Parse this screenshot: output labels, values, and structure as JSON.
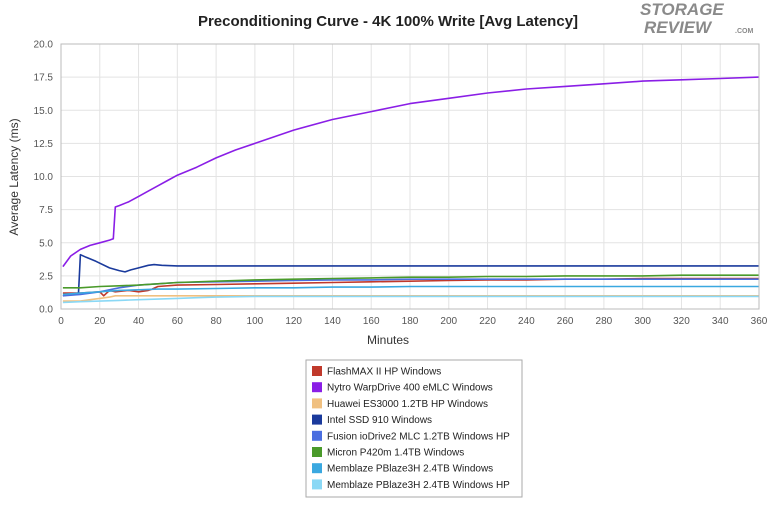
{
  "logo": {
    "line1": "STORAGE",
    "line2": "REVIEW",
    "suffix": ".COM"
  },
  "chart_data": {
    "type": "line",
    "title": "Preconditioning Curve - 4K 100% Write [Avg Latency]",
    "xlabel": "Minutes",
    "ylabel": "Average Latency (ms)",
    "xlim": [
      0,
      360
    ],
    "ylim": [
      0,
      20
    ],
    "xticks": [
      0,
      20,
      40,
      60,
      80,
      100,
      120,
      140,
      160,
      180,
      200,
      220,
      240,
      260,
      280,
      300,
      320,
      340,
      360
    ],
    "yticks": [
      "0.0",
      "2.5",
      "5.0",
      "7.5",
      "10.0",
      "12.5",
      "15.0",
      "17.5",
      "20.0"
    ],
    "grid": true,
    "legend_position": "bottom",
    "series": [
      {
        "name": "FlashMAX II HP Windows",
        "color": "#c0392b",
        "x": [
          1,
          10,
          20,
          22,
          25,
          28,
          35,
          40,
          45,
          47,
          50,
          60,
          80,
          100,
          120,
          140,
          160,
          180,
          200,
          220,
          240,
          260,
          280,
          300,
          320,
          340,
          360
        ],
        "y": [
          1.2,
          1.2,
          1.3,
          1.0,
          1.4,
          1.3,
          1.4,
          1.3,
          1.4,
          1.5,
          1.7,
          1.8,
          1.85,
          1.9,
          1.95,
          2.0,
          2.05,
          2.1,
          2.15,
          2.2,
          2.2,
          2.25,
          2.25,
          2.3,
          2.3,
          2.3,
          2.3
        ]
      },
      {
        "name": "Nytro WarpDrive 400 eMLC Windows",
        "color": "#8a1ee6",
        "x": [
          1,
          5,
          10,
          15,
          20,
          25,
          27,
          28,
          30,
          35,
          40,
          45,
          50,
          55,
          60,
          70,
          80,
          90,
          100,
          110,
          120,
          140,
          160,
          180,
          200,
          220,
          240,
          260,
          280,
          300,
          320,
          340,
          360
        ],
        "y": [
          3.2,
          4.0,
          4.5,
          4.8,
          5.0,
          5.2,
          5.3,
          7.7,
          7.8,
          8.1,
          8.5,
          8.9,
          9.3,
          9.7,
          10.1,
          10.7,
          11.4,
          12.0,
          12.5,
          13.0,
          13.5,
          14.3,
          14.9,
          15.5,
          15.9,
          16.3,
          16.6,
          16.8,
          17.0,
          17.2,
          17.3,
          17.4,
          17.5
        ]
      },
      {
        "name": "Huawei ES3000 1.2TB HP Windows",
        "color": "#f0c080",
        "x": [
          1,
          10,
          15,
          20,
          25,
          28,
          40,
          50,
          60,
          80,
          100,
          120,
          140,
          160,
          180,
          200,
          220,
          240,
          260,
          280,
          300,
          320,
          340,
          360
        ],
        "y": [
          0.6,
          0.6,
          0.7,
          0.8,
          0.9,
          1.0,
          1.0,
          1.0,
          1.0,
          1.0,
          1.0,
          1.0,
          1.0,
          1.0,
          1.0,
          1.0,
          1.0,
          1.0,
          1.0,
          1.0,
          1.0,
          1.0,
          1.0,
          1.0
        ]
      },
      {
        "name": "Intel SSD 910 Windows",
        "color": "#1a3a9c",
        "x": [
          1,
          5,
          9,
          10,
          13,
          18,
          25,
          30,
          33,
          36,
          40,
          45,
          48,
          52,
          60,
          80,
          100,
          120,
          140,
          160,
          180,
          200,
          220,
          240,
          260,
          280,
          300,
          320,
          340,
          360
        ],
        "y": [
          1.0,
          1.1,
          1.2,
          4.1,
          3.9,
          3.6,
          3.1,
          2.9,
          2.8,
          2.95,
          3.1,
          3.3,
          3.35,
          3.3,
          3.25,
          3.25,
          3.25,
          3.25,
          3.25,
          3.25,
          3.25,
          3.25,
          3.25,
          3.25,
          3.25,
          3.25,
          3.25,
          3.25,
          3.25,
          3.25
        ]
      },
      {
        "name": "Fusion ioDrive2 MLC 1.2TB Windows HP",
        "color": "#4a6ee0",
        "x": [
          1,
          10,
          20,
          30,
          40,
          50,
          60,
          80,
          100,
          120,
          140,
          160,
          180,
          200,
          220,
          240,
          260,
          280,
          300,
          320,
          340,
          360
        ],
        "y": [
          1.0,
          1.1,
          1.3,
          1.6,
          1.8,
          1.9,
          2.0,
          2.05,
          2.1,
          2.15,
          2.2,
          2.2,
          2.25,
          2.25,
          2.25,
          2.25,
          2.25,
          2.25,
          2.25,
          2.25,
          2.25,
          2.25
        ]
      },
      {
        "name": "Micron P420m 1.4TB Windows",
        "color": "#4a9a2a",
        "x": [
          1,
          10,
          20,
          30,
          40,
          50,
          60,
          80,
          100,
          120,
          140,
          160,
          180,
          200,
          220,
          240,
          260,
          280,
          300,
          320,
          340,
          360
        ],
        "y": [
          1.6,
          1.6,
          1.7,
          1.75,
          1.8,
          1.9,
          2.0,
          2.1,
          2.2,
          2.25,
          2.3,
          2.35,
          2.4,
          2.4,
          2.45,
          2.45,
          2.5,
          2.5,
          2.5,
          2.55,
          2.55,
          2.55
        ]
      },
      {
        "name": "Memblaze PBlaze3H 2.4TB Windows",
        "color": "#3aa8e0",
        "x": [
          1,
          10,
          20,
          30,
          40,
          50,
          60,
          80,
          100,
          120,
          140,
          160,
          180,
          200,
          220,
          240,
          260,
          280,
          300,
          320,
          340,
          360
        ],
        "y": [
          1.1,
          1.2,
          1.3,
          1.4,
          1.45,
          1.5,
          1.5,
          1.55,
          1.6,
          1.6,
          1.65,
          1.65,
          1.7,
          1.7,
          1.7,
          1.7,
          1.7,
          1.7,
          1.7,
          1.7,
          1.7,
          1.7
        ]
      },
      {
        "name": "Memblaze PBlaze3H 2.4TB Windows HP",
        "color": "#8ad8f5",
        "x": [
          1,
          10,
          20,
          30,
          40,
          50,
          60,
          70,
          80,
          100,
          120,
          140,
          160,
          180,
          200,
          220,
          240,
          260,
          280,
          300,
          320,
          340,
          360
        ],
        "y": [
          0.5,
          0.55,
          0.6,
          0.65,
          0.7,
          0.75,
          0.8,
          0.85,
          0.9,
          0.95,
          0.95,
          0.95,
          0.95,
          0.95,
          0.95,
          0.95,
          0.95,
          0.95,
          0.95,
          0.95,
          0.95,
          0.95,
          0.95
        ]
      }
    ]
  }
}
